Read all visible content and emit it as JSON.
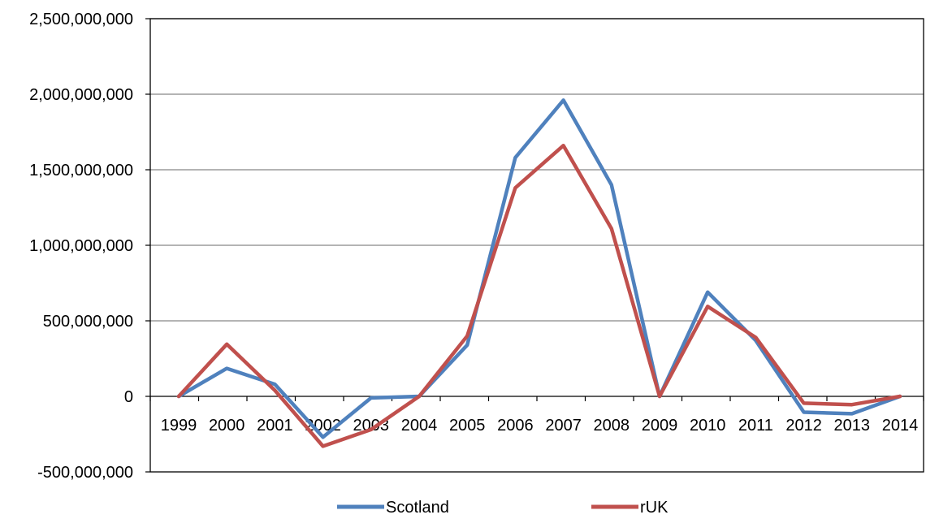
{
  "chart_data": {
    "type": "line",
    "categories": [
      "1999",
      "2000",
      "2001",
      "2002",
      "2003",
      "2004",
      "2005",
      "2006",
      "2007",
      "2008",
      "2009",
      "2010",
      "2011",
      "2012",
      "2013",
      "2014"
    ],
    "series": [
      {
        "name": "Scotland",
        "color": "#4F81BD",
        "values": [
          0,
          185000000,
          80000000,
          -270000000,
          -10000000,
          0,
          340000000,
          1580000000,
          1960000000,
          1400000000,
          0,
          690000000,
          370000000,
          -105000000,
          -115000000,
          0
        ]
      },
      {
        "name": "rUK",
        "color": "#C0504D",
        "values": [
          0,
          345000000,
          40000000,
          -330000000,
          -220000000,
          0,
          400000000,
          1380000000,
          1660000000,
          1110000000,
          0,
          595000000,
          390000000,
          -45000000,
          -55000000,
          0
        ]
      }
    ],
    "ylim": [
      -500000000,
      2500000000
    ],
    "yticks": [
      -500000000,
      0,
      500000000,
      1000000000,
      1500000000,
      2000000000,
      2500000000
    ],
    "ytick_labels": [
      "-500,000,000",
      "0",
      "500,000,000",
      "1,000,000,000",
      "1,500,000,000",
      "2,000,000,000",
      "2,500,000,000"
    ],
    "grid": true,
    "legend": "bottom",
    "title": "",
    "xlabel": "",
    "ylabel": ""
  }
}
